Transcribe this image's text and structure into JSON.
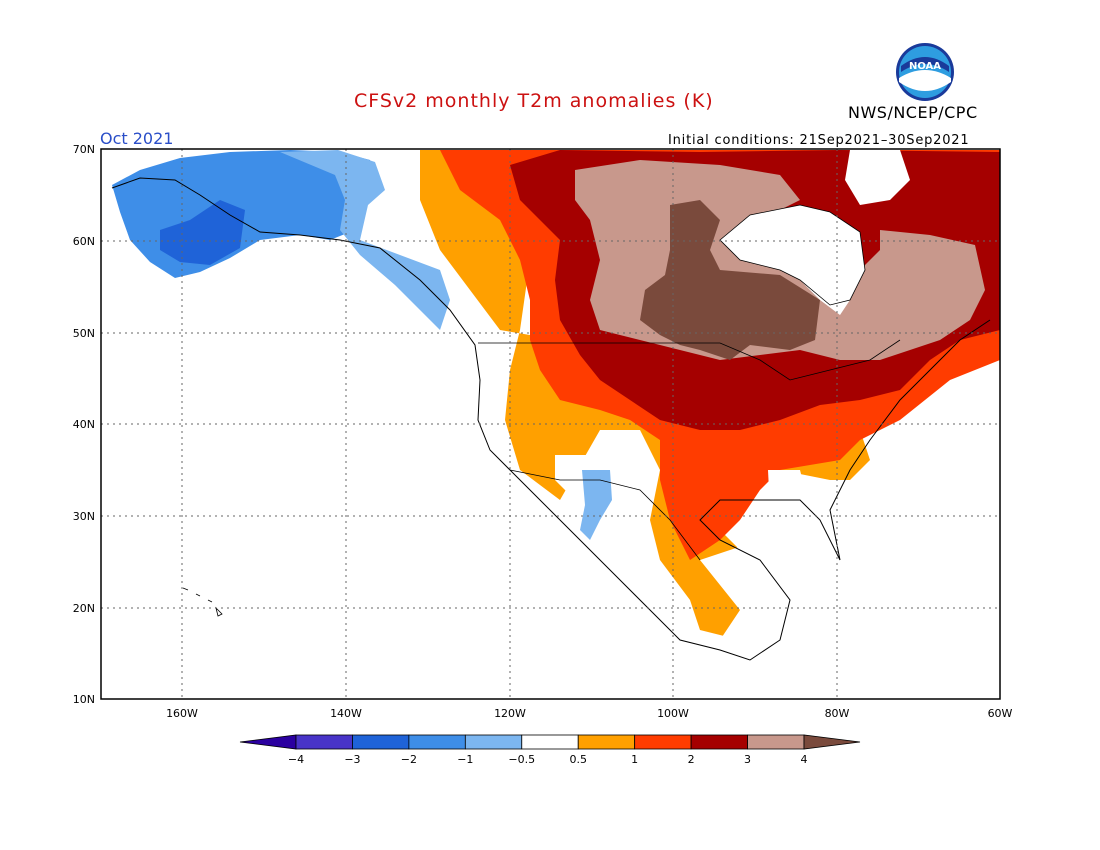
{
  "header": {
    "title": "CFSv2 monthly T2m anomalies (K)",
    "organization": "NWS/NCEP/CPC",
    "logo_text": "NOAA",
    "month": "Oct 2021",
    "initial_conditions": "Initial conditions: 21Sep2021–30Sep2021"
  },
  "axes": {
    "lat_labels": [
      "70N",
      "60N",
      "50N",
      "40N",
      "30N",
      "20N",
      "10N"
    ],
    "lon_labels": [
      "160W",
      "140W",
      "120W",
      "100W",
      "80W",
      "60W"
    ],
    "lat_range": [
      10,
      70
    ],
    "lon_range": [
      -171,
      -61
    ]
  },
  "colorbar": {
    "labels": [
      "−4",
      "−3",
      "−2",
      "−1",
      "−0.5",
      "0.5",
      "1",
      "2",
      "3",
      "4"
    ],
    "colors": [
      "#2b00a0",
      "#4834c8",
      "#1f63d8",
      "#3e8ee8",
      "#7cb6f0",
      "#ffffff",
      "#ffa000",
      "#ff3c00",
      "#a50000",
      "#c8988c",
      "#7a4a3c"
    ]
  },
  "colors": {
    "title": "#cc1111",
    "month": "#2a4ec8"
  }
}
